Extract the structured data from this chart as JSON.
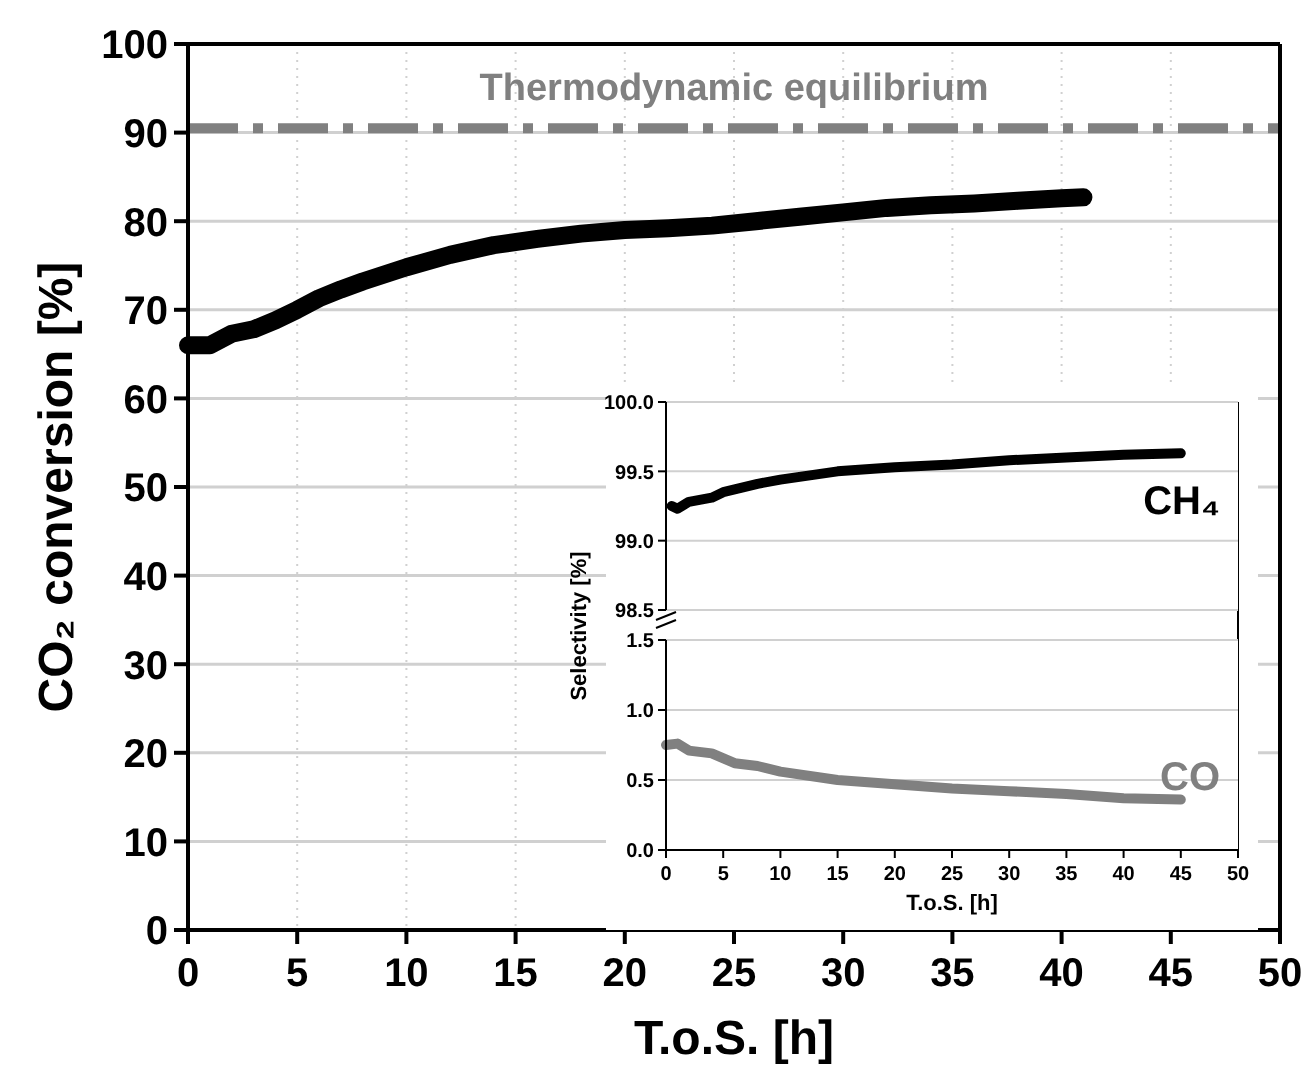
{
  "chart_data": [
    {
      "type": "line",
      "xlabel": "T.o.S. [h]",
      "ylabel": "CO₂ conversion [%]",
      "xlim": [
        0,
        50
      ],
      "ylim": [
        0,
        100
      ],
      "xticks": [
        0,
        5,
        10,
        15,
        20,
        25,
        30,
        35,
        40,
        45,
        50
      ],
      "yticks": [
        0,
        10,
        20,
        30,
        40,
        50,
        60,
        70,
        80,
        90,
        100
      ],
      "grid": true,
      "line_style": "solid",
      "x": [
        0,
        1,
        2,
        3,
        4,
        5,
        6,
        7,
        8,
        10,
        12,
        14,
        16,
        18,
        20,
        22,
        24,
        26,
        28,
        30,
        32,
        34,
        36,
        38,
        40,
        41
      ],
      "series": [
        {
          "color": "#000000",
          "values": [
            66,
            66,
            67.3,
            67.8,
            68.8,
            70,
            71.3,
            72.3,
            73.2,
            74.8,
            76.2,
            77.3,
            78,
            78.6,
            79,
            79.2,
            79.5,
            80,
            80.5,
            81,
            81.5,
            81.8,
            82,
            82.3,
            82.6,
            82.7
          ]
        }
      ],
      "ref_lines": [
        {
          "axis": "y",
          "value": 90.5,
          "label": "Thermodynamic equilibrium",
          "color": "#808080",
          "line_style": "dashdot"
        }
      ]
    },
    {
      "type": "line",
      "xlim": [
        0,
        50
      ],
      "ylim": [
        98.5,
        100
      ],
      "yticks": [
        {
          "value": 98.5,
          "label": "98.5"
        },
        {
          "value": 99,
          "label": "99.0"
        },
        {
          "value": 99.5,
          "label": "99.5"
        },
        {
          "value": 100,
          "label": "100.0"
        }
      ],
      "tick_labels": "y",
      "grid": "y",
      "x": [
        0.5,
        1,
        2,
        4,
        5,
        8,
        10,
        15,
        20,
        25,
        30,
        35,
        40,
        45
      ],
      "series": [
        {
          "name": "CH₄",
          "color": "#000000",
          "values": [
            99.25,
            99.23,
            99.28,
            99.31,
            99.35,
            99.41,
            99.44,
            99.5,
            99.53,
            99.55,
            99.58,
            99.6,
            99.62,
            99.63
          ]
        }
      ]
    },
    {
      "type": "line",
      "xlabel": "T.o.S. [h]",
      "ylabel": "Selectivity [%]",
      "xlim": [
        0,
        50
      ],
      "ylim": [
        0,
        1.5
      ],
      "xticks": [
        0,
        5,
        10,
        15,
        20,
        25,
        30,
        35,
        40,
        45,
        50
      ],
      "yticks": [
        {
          "value": 0,
          "label": "0.0"
        },
        {
          "value": 0.5,
          "label": "0.5"
        },
        {
          "value": 1,
          "label": "1.0"
        },
        {
          "value": 1.5,
          "label": "1.5"
        }
      ],
      "grid": "y",
      "x": [
        0,
        1,
        2,
        4,
        6,
        8,
        10,
        15,
        20,
        25,
        30,
        35,
        40,
        45
      ],
      "series": [
        {
          "name": "CO",
          "color": "#808080",
          "values": [
            0.75,
            0.76,
            0.71,
            0.69,
            0.62,
            0.6,
            0.56,
            0.5,
            0.47,
            0.44,
            0.42,
            0.4,
            0.37,
            0.36
          ]
        }
      ]
    }
  ]
}
